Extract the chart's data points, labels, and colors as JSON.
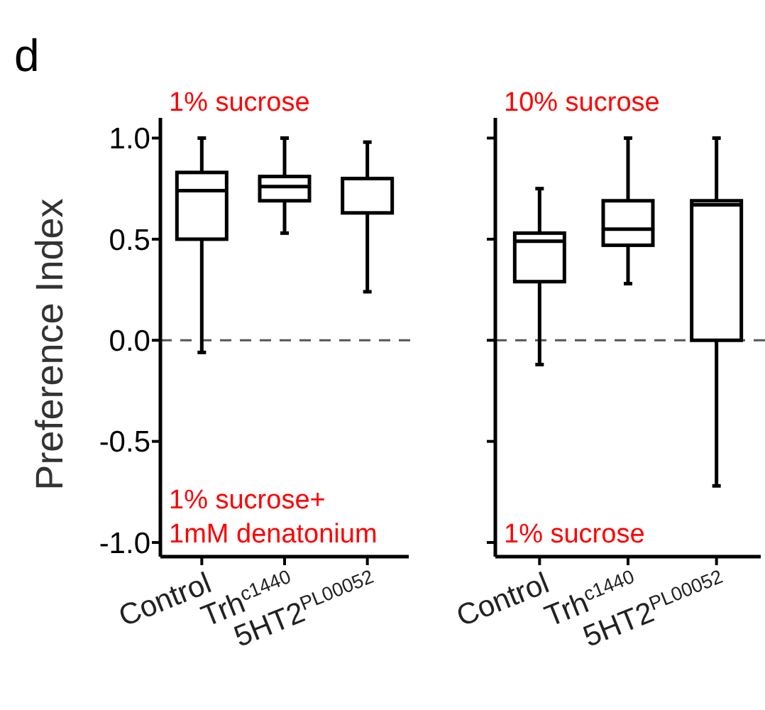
{
  "chart_data": [
    {
      "type": "box",
      "title": "d",
      "ylabel": "Preference Index",
      "categories": [
        "Control",
        "Trh$^{c1440}$",
        "5HT2$^{PL00052}$"
      ],
      "boxes": [
        {
          "low": -0.06,
          "q1": 0.5,
          "median": 0.74,
          "q3": 0.83,
          "high": 1.0
        },
        {
          "low": 0.53,
          "q1": 0.69,
          "median": 0.76,
          "q3": 0.81,
          "high": 1.0
        },
        {
          "low": 0.24,
          "q1": 0.63,
          "median": 0.8,
          "q3": 0.8,
          "high": 0.98
        }
      ],
      "ylim": [
        -1.07,
        1.1
      ],
      "yticks": [
        {
          "value": 1,
          "label": "1.0"
        },
        {
          "value": 0.5,
          "label": "0.5"
        },
        {
          "value": 0,
          "label": "0.0"
        },
        {
          "value": -0.5,
          "label": "-0.5"
        },
        {
          "value": -1,
          "label": "-1.0"
        }
      ],
      "ref_lines": [
        {
          "axis": "y",
          "value": 0,
          "line_style": "dashed",
          "color": "#555555"
        }
      ],
      "annotations": [
        "1% sucrose",
        "1% sucrose+\n1mM denatonium"
      ]
    },
    {
      "type": "box",
      "categories": [
        "Control",
        "Trh$^{c1440}$",
        "5HT2$^{PL00052}$"
      ],
      "boxes": [
        {
          "low": -0.12,
          "q1": 0.29,
          "median": 0.49,
          "q3": 0.53,
          "high": 0.75
        },
        {
          "low": 0.28,
          "q1": 0.47,
          "median": 0.55,
          "q3": 0.69,
          "high": 1.0
        },
        {
          "low": -0.72,
          "q1": 0.0,
          "median": 0.67,
          "q3": 0.69,
          "high": 1.0
        }
      ],
      "ylim": [
        -1.07,
        1.1
      ],
      "yticks": [
        {
          "value": 1,
          "label": null
        },
        {
          "value": 0.5,
          "label": null
        },
        {
          "value": 0,
          "label": null
        },
        {
          "value": -0.5,
          "label": null
        },
        {
          "value": -1,
          "label": null
        }
      ],
      "tick_labels": "x",
      "ref_lines": [
        {
          "axis": "y",
          "value": 0,
          "line_style": "dashed",
          "color": "#555555"
        }
      ],
      "annotations": [
        "10% sucrose",
        "1% sucrose"
      ]
    }
  ]
}
